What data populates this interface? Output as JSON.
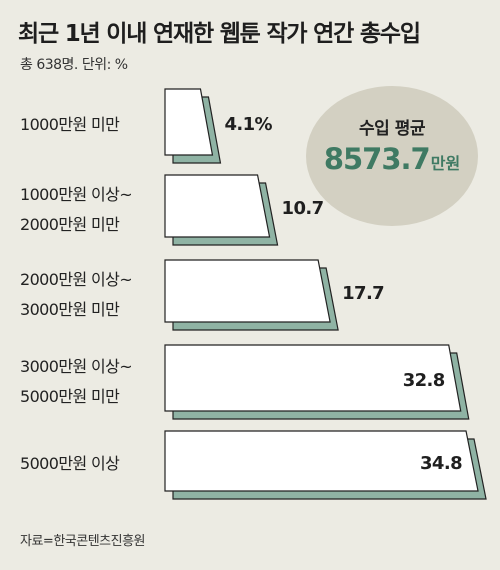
{
  "header": {
    "title": "최근 1년 이내 연재한 웹툰 작가 연간 총수입",
    "subtitle": "총 638명. 단위: %"
  },
  "average": {
    "label": "수입 평균",
    "value": "8573.7",
    "unit": "만원"
  },
  "source": "자료=한국콘텐츠진흥원",
  "colors": {
    "background": "#ecebe3",
    "bar_face": "#ffffff",
    "bar_shadow": "#8fb3a4",
    "accent": "#3f7a63",
    "circle": "#d3d0c2"
  },
  "chart_data": {
    "type": "bar",
    "orientation": "horizontal",
    "categories": [
      [
        "1000만원 미만"
      ],
      [
        "1000만원 이상~",
        "2000만원 미만"
      ],
      [
        "2000만원 이상~",
        "3000만원 미만"
      ],
      [
        "3000만원 이상~",
        "5000만원 미만"
      ],
      [
        "5000만원 이상"
      ]
    ],
    "values": [
      4.1,
      10.7,
      17.7,
      32.8,
      34.8
    ],
    "value_labels": [
      "4.1%",
      "10.7",
      "17.7",
      "32.8",
      "34.8"
    ],
    "unit": "%"
  }
}
